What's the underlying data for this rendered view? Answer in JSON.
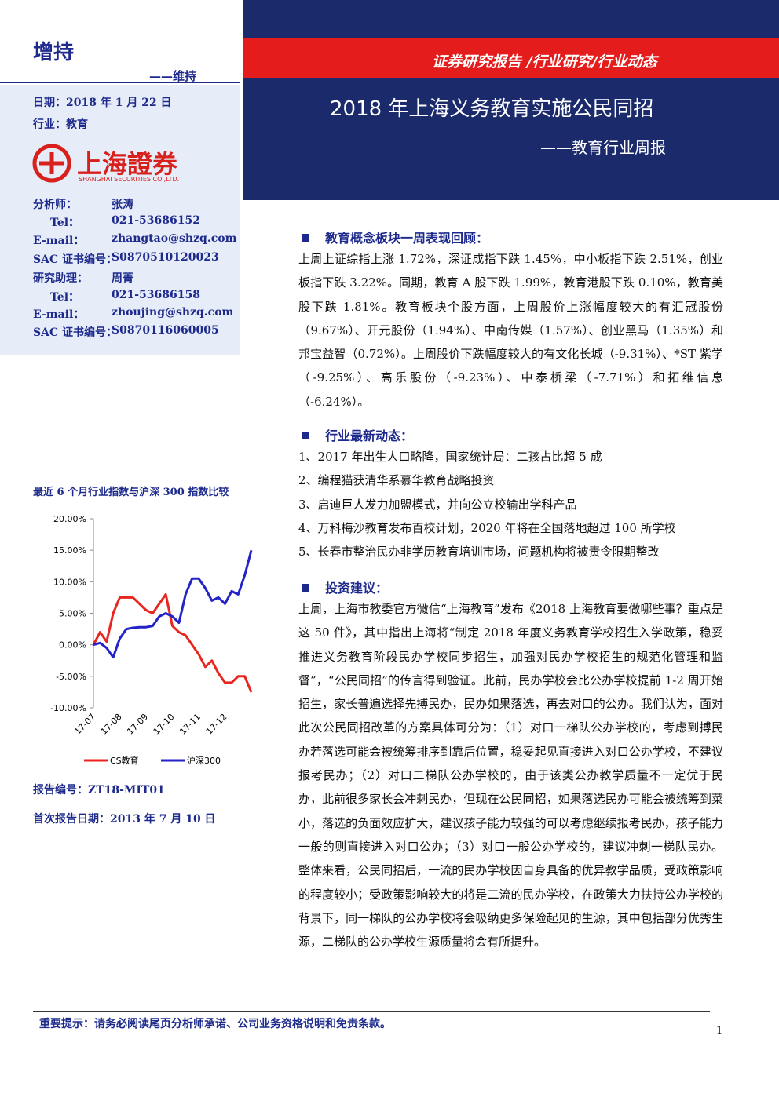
{
  "header": {
    "rating": "增持",
    "rating_sub": "——维持",
    "band": "证券研究报告 /行业研究/行业动态",
    "title": "2018 年上海义务教育实施公民同招",
    "subtitle": "——教育行业周报"
  },
  "info": {
    "date": "日期：2018 年 1 月 22 日",
    "industry": "行业：教育",
    "logo": "上海證券",
    "logo_en": "SHANGHAI SECURITIES CO.,LTD.",
    "analysts": [
      [
        "分析师：",
        "张涛"
      ],
      [
        "Tel：",
        "021-53686152"
      ],
      [
        "E-mail：",
        "zhangtao@shzq.com"
      ],
      [
        "SAC 证书编号：",
        "S0870510120023"
      ],
      [
        "研究助理：",
        "周菁"
      ],
      [
        "Tel：",
        "021-53686158"
      ],
      [
        "E-mail：",
        "zhoujing@shzq.com"
      ],
      [
        "SAC 证书编号：",
        "S0870116060005"
      ]
    ],
    "report_no": "报告编号：ZT18-MIT01",
    "first_date": "首次报告日期：2013 年 7 月 10 日"
  },
  "chart_data": {
    "type": "line",
    "title": "最近 6 个月行业指数与沪深 300 指数比较",
    "categories": [
      "17-07",
      null,
      null,
      null,
      "17-08",
      null,
      null,
      null,
      "17-09",
      null,
      null,
      null,
      "17-10",
      null,
      null,
      null,
      "17-11",
      null,
      null,
      null,
      "17-12",
      null,
      null,
      null,
      null
    ],
    "series": [
      {
        "name": "CS教育",
        "color": "#e8251f",
        "values": [
          0,
          2,
          0.5,
          5,
          7.5,
          7.5,
          7.5,
          6.5,
          5.5,
          5,
          6.5,
          8,
          3,
          2,
          1.5,
          0,
          -1.5,
          -3.5,
          -2.5,
          -4.5,
          -6,
          -6,
          -5,
          -5,
          -7.5
        ]
      },
      {
        "name": "沪深300",
        "color": "#2323c8",
        "values": [
          0,
          0.3,
          -0.5,
          -2,
          1,
          2.5,
          2.7,
          2.8,
          2.8,
          3,
          4.5,
          5,
          4.5,
          3.5,
          8,
          10.5,
          10.5,
          9,
          7,
          7.5,
          6.5,
          8.5,
          8,
          11,
          15
        ]
      }
    ],
    "ylim": [
      -10,
      20
    ],
    "yticks": [
      {
        "value": -10,
        "label": "-10.00%"
      },
      {
        "value": -5,
        "label": "-5.00%"
      },
      {
        "value": 0,
        "label": "0.00%"
      },
      {
        "value": 5,
        "label": "5.00%"
      },
      {
        "value": 10,
        "label": "10.00%"
      },
      {
        "value": 15,
        "label": "15.00%"
      },
      {
        "value": 20,
        "label": "20.00%"
      }
    ],
    "legend": "bottom"
  },
  "sections": [
    {
      "heading": "教育概念板块一周表现回顾：",
      "paragraphs": [
        "上周上证综指上涨 1.72%，深证成指下跌 1.45%，中小板指下跌 2.51%，创业板指下跌 3.22%。同期，教育 A 股下跌 1.99%，教育港股下跌 0.10%，教育美股下跌 1.81%。教育板块个股方面，上周股价上涨幅度较大的有汇冠股份（9.67%）、开元股份（1.94%）、中南传媒（1.57%）、创业黑马（1.35%）和邦宝益智（0.72%）。上周股价下跌幅度较大的有文化长城（-9.31%）、*ST 紫学（-9.25%）、高乐股份（-9.23%）、中泰桥梁（-7.71%）和拓维信息（-6.24%）。"
      ]
    },
    {
      "heading": "行业最新动态：",
      "paragraphs": [
        "1、2017 年出生人口略降，国家统计局：二孩占比超 5 成",
        "2、编程猫获清华系慕华教育战略投资",
        "3、启迪巨人发力加盟模式，并向公立校输出学科产品",
        "4、万科梅沙教育发布百校计划，2020 年将在全国落地超过 100 所学校",
        "5、长春市整治民办非学历教育培训市场，问题机构将被责令限期整改"
      ]
    },
    {
      "heading": "投资建议：",
      "paragraphs": [
        "上周，上海市教委官方微信“上海教育”发布《2018 上海教育要做哪些事？重点是这 50 件》，其中指出上海将“制定 2018 年度义务教育学校招生入学政策，稳妥推进义务教育阶段民办学校同步招生，加强对民办学校招生的规范化管理和监督”，“公民同招”的传言得到验证。此前，民办学校会比公办学校提前 1-2 周开始招生，家长普遍选择先搏民办，民办如果落选，再去对口的公办。我们认为，面对此次公民同招改革的方案具体可分为：（1）对口一梯队公办学校的，考虑到搏民办若落选可能会被统筹排序到靠后位置，稳妥起见直接进入对口公办学校，不建议报考民办；（2）对口二梯队公办学校的，由于该类公办教学质量不一定优于民办，此前很多家长会冲刺民办，但现在公民同招，如果落选民办可能会被统筹到菜小，落选的负面效应扩大，建议孩子能力较强的可以考虑继续报考民办，孩子能力一般的则直接进入对口公办；（3）对口一般公办学校的，建议冲刺一梯队民办。整体来看，公民同招后，一流的民办学校因自身具备的优异教学品质，受政策影响的程度较小；受政策影响较大的将是二流的民办学校，在政策大力扶持公办学校的背景下，同一梯队的公办学校将会吸纳更多保险起见的生源，其中包括部分优秀生源，二梯队的公办学校生源质量将会有所提升。"
      ]
    }
  ],
  "footer": {
    "note": "重要提示：请务必阅读尾页分析师承诺、公司业务资格说明和免责条款。",
    "page": "1"
  }
}
